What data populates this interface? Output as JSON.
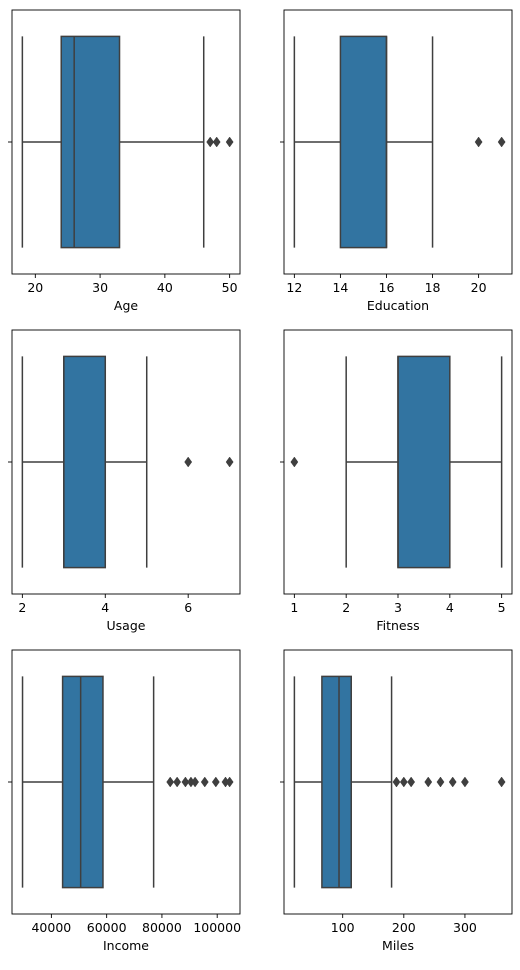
{
  "chart_data": [
    {
      "type": "boxplot",
      "xlabel": "Age",
      "xlim": [
        16.4,
        51.6
      ],
      "ticks": [
        20,
        30,
        40,
        50
      ],
      "tick_labels": [
        "20",
        "30",
        "40",
        "50"
      ],
      "whisker_low": 18,
      "q1": 24,
      "median": 26,
      "q3": 33,
      "whisker_high": 46,
      "outliers": [
        47,
        48,
        50
      ],
      "box_color": "#3274a1",
      "edge_color": "#3f3f3f",
      "grid": false
    },
    {
      "type": "boxplot",
      "xlabel": "Education",
      "xlim": [
        11.55,
        21.45
      ],
      "ticks": [
        12,
        14,
        16,
        18,
        20
      ],
      "tick_labels": [
        "12",
        "14",
        "16",
        "18",
        "20"
      ],
      "whisker_low": 12,
      "q1": 14,
      "median": 16,
      "q3": 16,
      "whisker_high": 18,
      "outliers": [
        20,
        21
      ],
      "box_color": "#3274a1",
      "edge_color": "#3f3f3f",
      "grid": false
    },
    {
      "type": "boxplot",
      "xlabel": "Usage",
      "xlim": [
        1.75,
        7.25
      ],
      "ticks": [
        2,
        4,
        6
      ],
      "tick_labels": [
        "2",
        "4",
        "6"
      ],
      "whisker_low": 2,
      "q1": 3,
      "median": 3,
      "q3": 4,
      "whisker_high": 5,
      "outliers": [
        6,
        7
      ],
      "box_color": "#3274a1",
      "edge_color": "#3f3f3f",
      "grid": false
    },
    {
      "type": "boxplot",
      "xlabel": "Fitness",
      "xlim": [
        0.8,
        5.2
      ],
      "ticks": [
        1,
        2,
        3,
        4,
        5
      ],
      "tick_labels": [
        "1",
        "2",
        "3",
        "4",
        "5"
      ],
      "whisker_low": 2,
      "q1": 3,
      "median": 3,
      "q3": 4,
      "whisker_high": 5,
      "outliers": [
        1
      ],
      "box_color": "#3274a1",
      "edge_color": "#3f3f3f",
      "grid": false
    },
    {
      "type": "boxplot",
      "xlabel": "Income",
      "xlim": [
        25750,
        108250
      ],
      "ticks": [
        40000,
        60000,
        80000,
        100000
      ],
      "tick_labels": [
        "40000",
        "60000",
        "80000",
        "100000"
      ],
      "whisker_low": 29562,
      "q1": 44058,
      "median": 50597,
      "q3": 58668,
      "whisker_high": 77000,
      "outliers": [
        83000,
        85500,
        88500,
        90500,
        92000,
        95500,
        99500,
        103000,
        104500
      ],
      "box_color": "#3274a1",
      "edge_color": "#3f3f3f",
      "grid": false
    },
    {
      "type": "boxplot",
      "xlabel": "Miles",
      "xlim": [
        4,
        377
      ],
      "ticks": [
        100,
        200,
        300
      ],
      "tick_labels": [
        "100",
        "200",
        "300"
      ],
      "whisker_low": 21,
      "q1": 66,
      "median": 94,
      "q3": 114,
      "whisker_high": 180,
      "outliers": [
        188,
        200,
        212,
        240,
        260,
        280,
        300,
        360
      ],
      "box_color": "#3274a1",
      "edge_color": "#3f3f3f",
      "grid": false
    }
  ]
}
